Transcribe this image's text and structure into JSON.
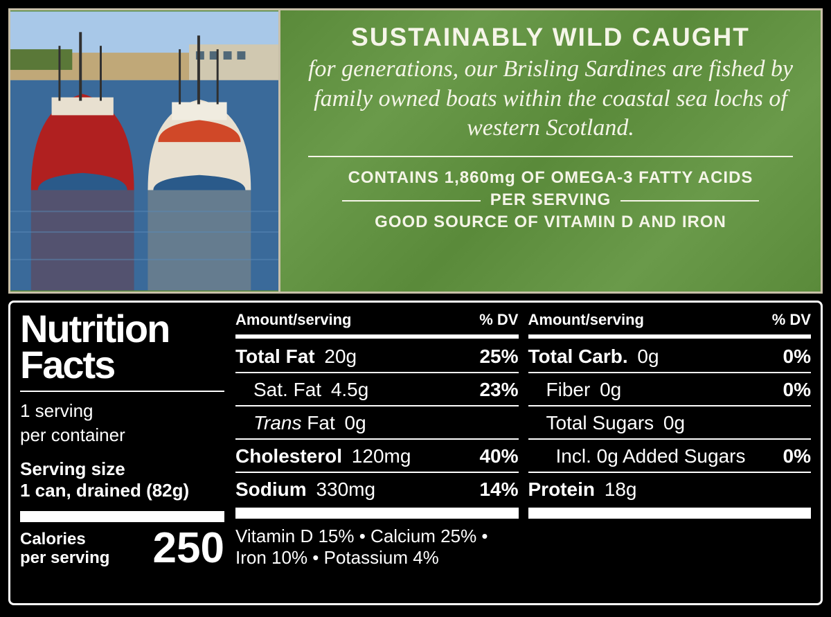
{
  "marketing": {
    "headline": "SUSTAINABLY WILD CAUGHT",
    "body": "for generations, our Brisling Sardines are fished by family owned boats within the coastal sea lochs of western Scotland.",
    "claim_line1": "CONTAINS 1,860mg OF OMEGA-3 FATTY ACIDS",
    "claim_line2": "PER SERVING",
    "claim_line3": "GOOD SOURCE OF VITAMIN D AND IRON"
  },
  "colors": {
    "panel_green": "#5a8a3a",
    "border_tan": "#c8c0a8",
    "text_cream": "#f5f5e8",
    "black": "#000000",
    "white": "#ffffff"
  },
  "nutrition": {
    "title_l1": "Nutrition",
    "title_l2": "Facts",
    "servings_per_container": "1 serving",
    "per_container_suffix": "per container",
    "serving_size_label": "Serving size",
    "serving_size_value": "1 can, drained (82g)",
    "calories_label_l1": "Calories",
    "calories_label_l2": "per serving",
    "calories_value": "250",
    "head_amount": "Amount/serving",
    "head_dv": "% DV",
    "col1": [
      {
        "label": "Total Fat",
        "amount": "20g",
        "dv": "25%",
        "bold": true,
        "indent": 0
      },
      {
        "label": "Sat. Fat",
        "amount": "4.5g",
        "dv": "23%",
        "bold": false,
        "indent": 1
      },
      {
        "label": "Trans Fat",
        "amount": "0g",
        "dv": "",
        "bold": false,
        "indent": 1,
        "italic_label": true
      },
      {
        "label": "Cholesterol",
        "amount": "120mg",
        "dv": "40%",
        "bold": true,
        "indent": 0
      },
      {
        "label": "Sodium",
        "amount": "330mg",
        "dv": "14%",
        "bold": true,
        "indent": 0
      }
    ],
    "col2": [
      {
        "label": "Total Carb.",
        "amount": "0g",
        "dv": "0%",
        "bold": true,
        "indent": 0
      },
      {
        "label": "Fiber",
        "amount": "0g",
        "dv": "0%",
        "bold": false,
        "indent": 1
      },
      {
        "label": "Total Sugars",
        "amount": "0g",
        "dv": "",
        "bold": false,
        "indent": 1
      },
      {
        "label": "Incl. 0g Added Sugars",
        "amount": "",
        "dv": "0%",
        "bold": false,
        "indent": 2
      },
      {
        "label": "Protein",
        "amount": "18g",
        "dv": "",
        "bold": true,
        "indent": 0
      }
    ],
    "footer_vitamins": "Vitamin D 15% • Calcium 25% • Iron 10% • Potassium 4%"
  },
  "photo": {
    "description": "fishing-boats-harbor",
    "sky_color": "#a8c8e8",
    "water_color": "#3a6a9a",
    "boat1_hull": "#b02020",
    "boat2_hull": "#e8e0d0",
    "building_color": "#c0a878",
    "tree_color": "#5a7838"
  }
}
